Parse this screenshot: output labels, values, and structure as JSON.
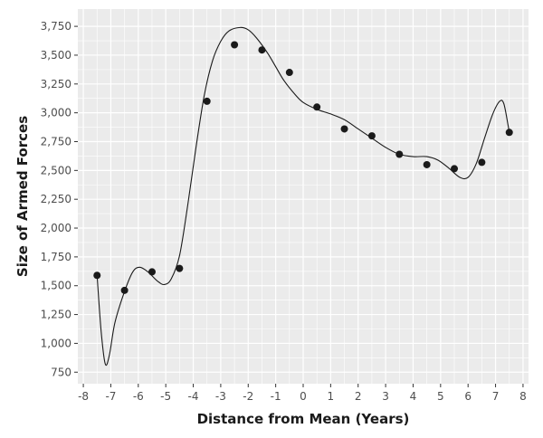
{
  "chart_data": {
    "type": "scatter",
    "title": "",
    "xlabel": "Distance from Mean (Years)",
    "ylabel": "Size of Armed Forces",
    "xlim": [
      -8.2,
      8.2
    ],
    "ylim": [
      650,
      3900
    ],
    "x_ticks": [
      -8,
      -7,
      -6,
      -5,
      -4,
      -3,
      -2,
      -1,
      0,
      1,
      2,
      3,
      4,
      5,
      6,
      7,
      8
    ],
    "x_tick_labels": [
      "-8",
      "-7",
      "-6",
      "-5",
      "-4",
      "-3",
      "-2",
      "-1",
      "0",
      "1",
      "2",
      "3",
      "4",
      "5",
      "6",
      "7",
      "8"
    ],
    "y_ticks": [
      750,
      1000,
      1250,
      1500,
      1750,
      2000,
      2250,
      2500,
      2750,
      3000,
      3250,
      3500,
      3750
    ],
    "y_tick_labels": [
      "750",
      "1,000",
      "1,250",
      "1,500",
      "1,750",
      "2,000",
      "2,250",
      "2,500",
      "2,750",
      "3,000",
      "3,250",
      "3,500",
      "3,750"
    ],
    "grid": true,
    "background": "#ebebeb",
    "grid_color": "#ffffff",
    "point_color": "#1a1a1a",
    "line_color": "#1a1a1a",
    "points": [
      {
        "x": -7.5,
        "y": 1590
      },
      {
        "x": -6.5,
        "y": 1460
      },
      {
        "x": -5.5,
        "y": 1620
      },
      {
        "x": -4.5,
        "y": 1650
      },
      {
        "x": -3.5,
        "y": 3100
      },
      {
        "x": -2.5,
        "y": 3590
      },
      {
        "x": -1.5,
        "y": 3545
      },
      {
        "x": -0.5,
        "y": 3350
      },
      {
        "x": 0.5,
        "y": 3050
      },
      {
        "x": 1.5,
        "y": 2860
      },
      {
        "x": 2.5,
        "y": 2800
      },
      {
        "x": 3.5,
        "y": 2640
      },
      {
        "x": 4.5,
        "y": 2550
      },
      {
        "x": 5.5,
        "y": 2515
      },
      {
        "x": 6.5,
        "y": 2570
      },
      {
        "x": 7.5,
        "y": 2830
      }
    ],
    "smooth_line": [
      {
        "x": -7.5,
        "y": 1590
      },
      {
        "x": -7.35,
        "y": 1100
      },
      {
        "x": -7.2,
        "y": 820
      },
      {
        "x": -7.05,
        "y": 900
      },
      {
        "x": -6.85,
        "y": 1180
      },
      {
        "x": -6.5,
        "y": 1450
      },
      {
        "x": -6.2,
        "y": 1620
      },
      {
        "x": -5.95,
        "y": 1660
      },
      {
        "x": -5.65,
        "y": 1620
      },
      {
        "x": -5.3,
        "y": 1540
      },
      {
        "x": -5.05,
        "y": 1510
      },
      {
        "x": -4.8,
        "y": 1560
      },
      {
        "x": -4.5,
        "y": 1760
      },
      {
        "x": -4.2,
        "y": 2200
      },
      {
        "x": -3.9,
        "y": 2700
      },
      {
        "x": -3.6,
        "y": 3150
      },
      {
        "x": -3.3,
        "y": 3450
      },
      {
        "x": -3.0,
        "y": 3620
      },
      {
        "x": -2.7,
        "y": 3710
      },
      {
        "x": -2.3,
        "y": 3740
      },
      {
        "x": -2.0,
        "y": 3720
      },
      {
        "x": -1.7,
        "y": 3650
      },
      {
        "x": -1.3,
        "y": 3520
      },
      {
        "x": -1.0,
        "y": 3400
      },
      {
        "x": -0.7,
        "y": 3280
      },
      {
        "x": -0.3,
        "y": 3160
      },
      {
        "x": 0.0,
        "y": 3090
      },
      {
        "x": 0.5,
        "y": 3030
      },
      {
        "x": 1.0,
        "y": 2990
      },
      {
        "x": 1.5,
        "y": 2940
      },
      {
        "x": 2.0,
        "y": 2860
      },
      {
        "x": 2.5,
        "y": 2780
      },
      {
        "x": 3.0,
        "y": 2700
      },
      {
        "x": 3.5,
        "y": 2640
      },
      {
        "x": 4.0,
        "y": 2620
      },
      {
        "x": 4.5,
        "y": 2620
      },
      {
        "x": 4.9,
        "y": 2590
      },
      {
        "x": 5.3,
        "y": 2520
      },
      {
        "x": 5.7,
        "y": 2440
      },
      {
        "x": 6.0,
        "y": 2440
      },
      {
        "x": 6.3,
        "y": 2560
      },
      {
        "x": 6.6,
        "y": 2780
      },
      {
        "x": 6.9,
        "y": 2990
      },
      {
        "x": 7.15,
        "y": 3100
      },
      {
        "x": 7.3,
        "y": 3080
      },
      {
        "x": 7.45,
        "y": 2900
      },
      {
        "x": 7.5,
        "y": 2830
      }
    ]
  }
}
